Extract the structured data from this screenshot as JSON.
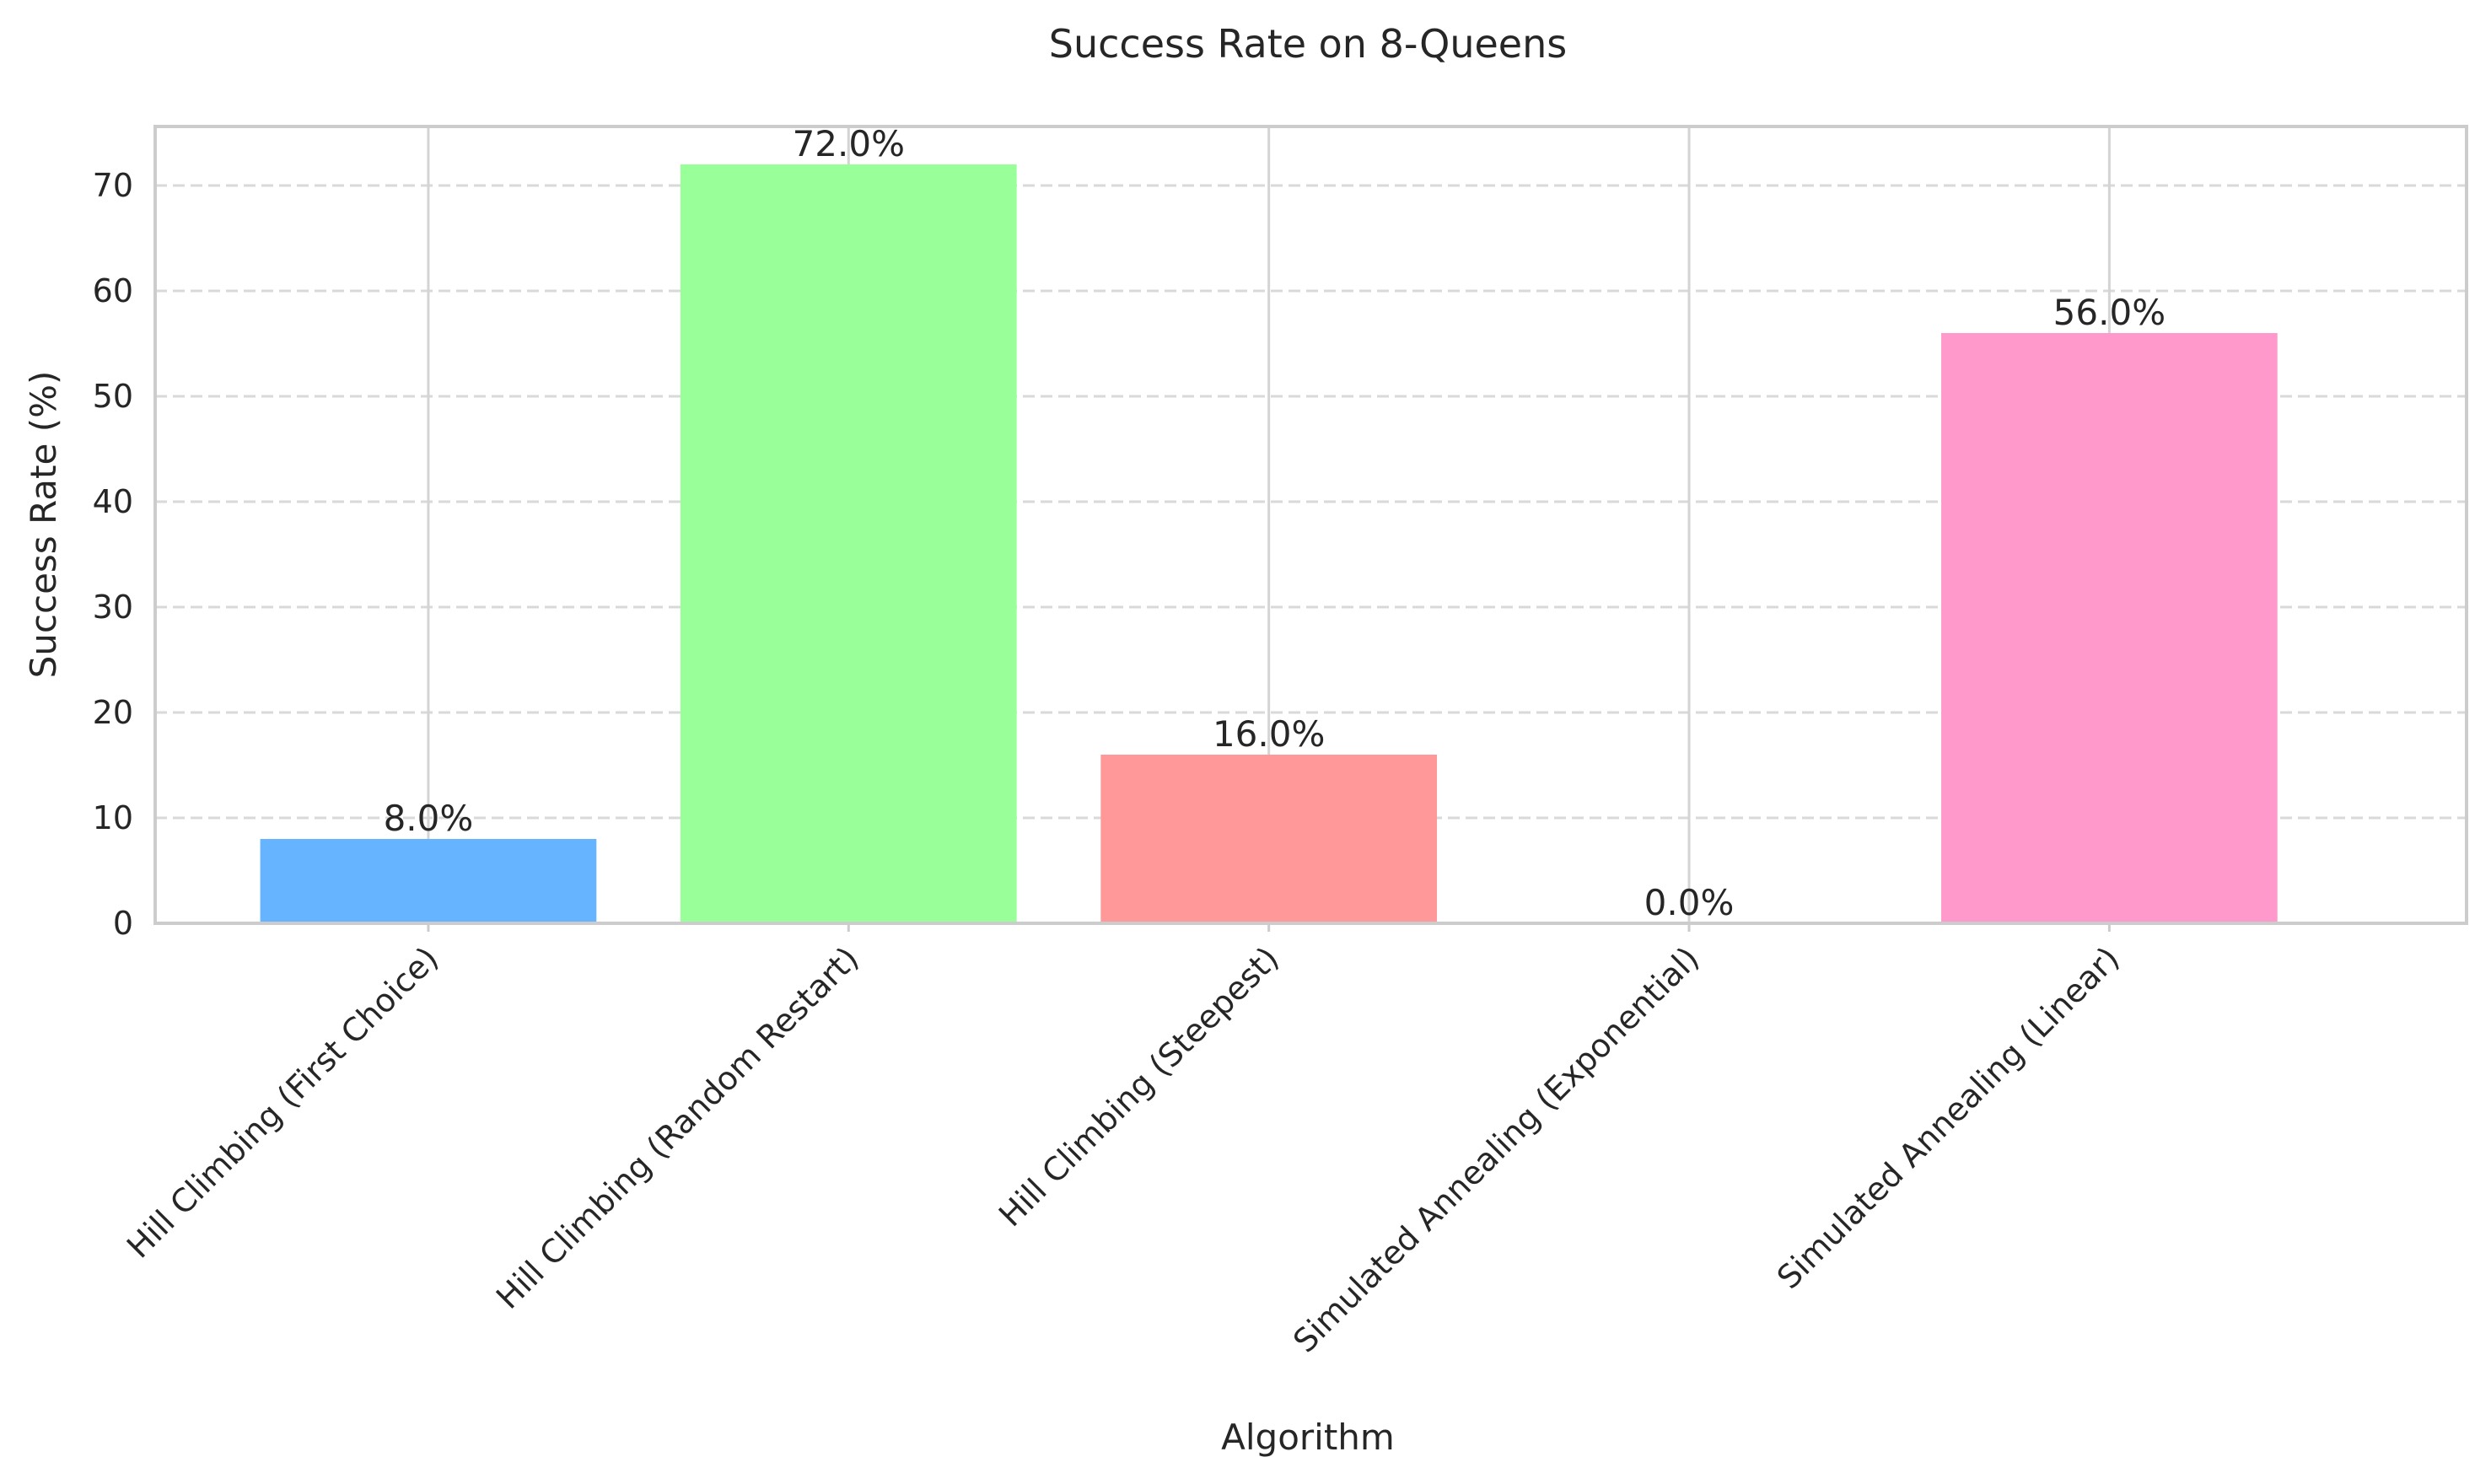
{
  "chart_data": {
    "type": "bar",
    "title": "Success Rate on 8-Queens",
    "xlabel": "Algorithm",
    "ylabel": "Success Rate (%)",
    "categories": [
      "Hill Climbing (First Choice)",
      "Hill Climbing (Random Restart)",
      "Hill Climbing (Steepest)",
      "Simulated Annealing (Exponential)",
      "Simulated Annealing (Linear)"
    ],
    "values": [
      8.0,
      72.0,
      16.0,
      0.0,
      56.0
    ],
    "data_labels": [
      "8.0%",
      "72.0%",
      "16.0%",
      "0.0%",
      "56.0%"
    ],
    "colors": [
      "#66b3ff",
      "#99ff99",
      "#ff9999",
      "#ffcc99",
      "#ff99cc"
    ],
    "ylim": [
      0,
      75.6
    ],
    "yticks": [
      0,
      10,
      20,
      30,
      40,
      50,
      60,
      70
    ],
    "grid": {
      "x": "solid",
      "y": "dashed"
    },
    "legend": "none"
  }
}
